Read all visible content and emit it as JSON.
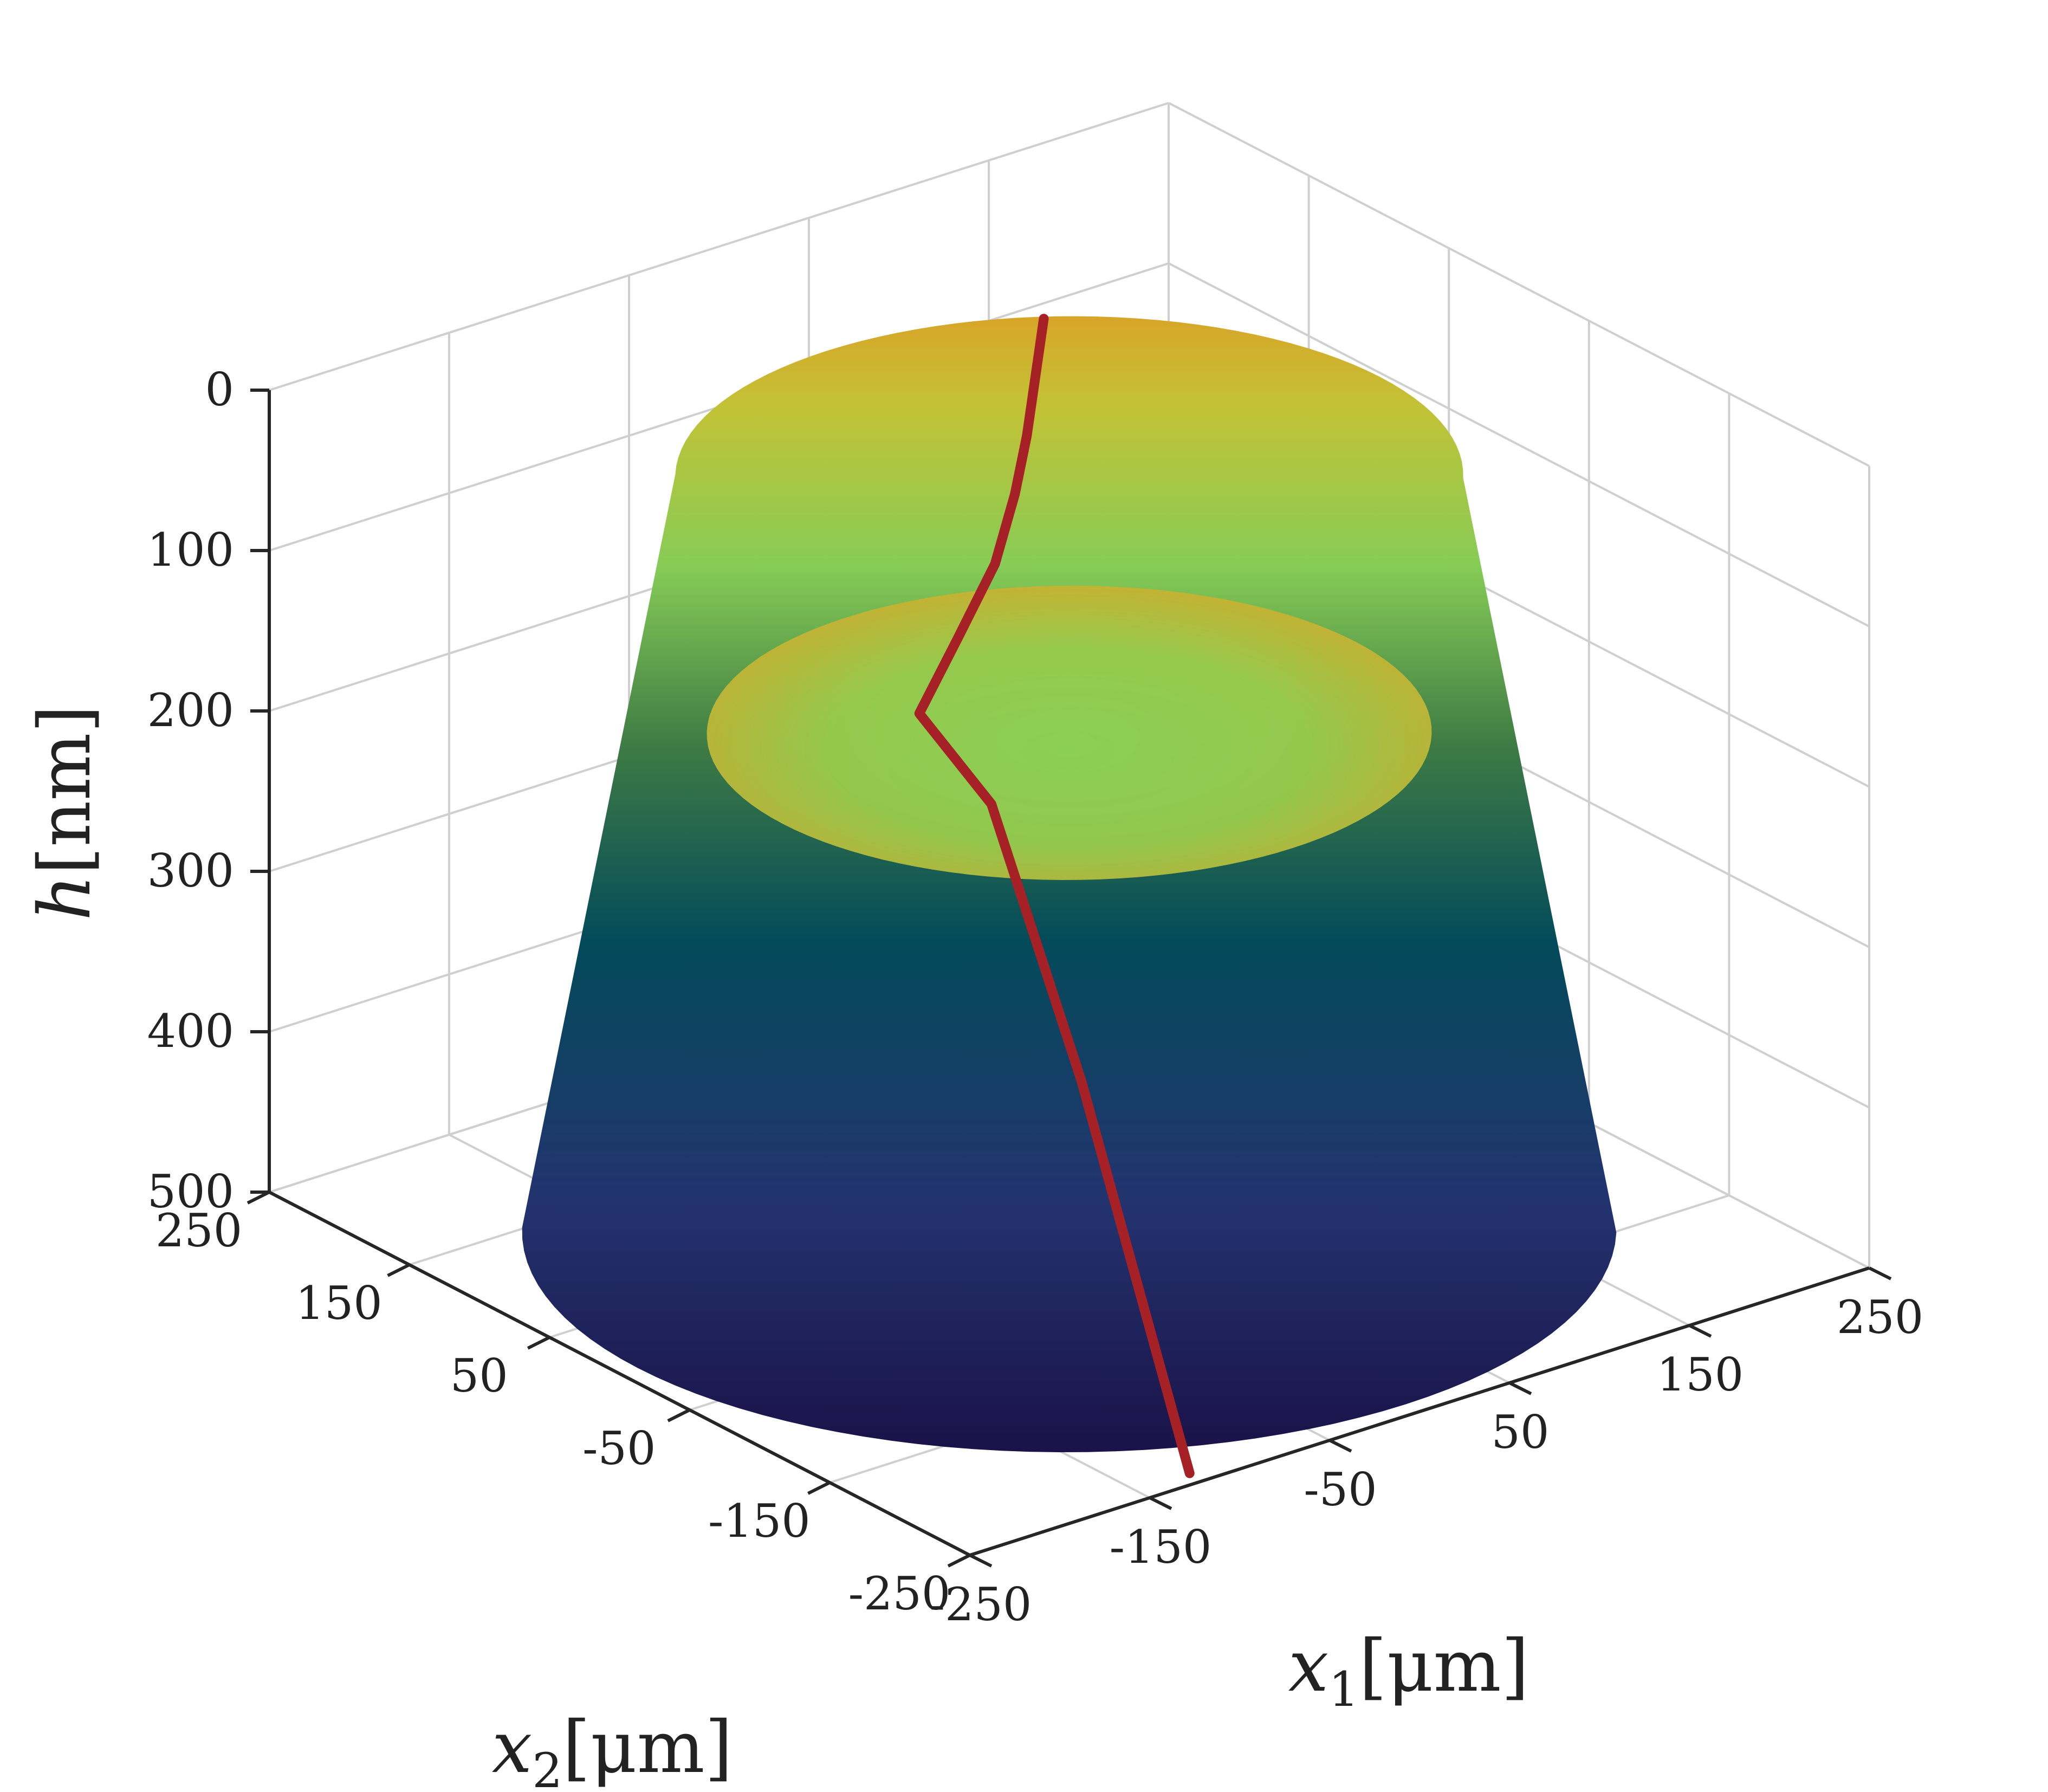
{
  "chart_data": {
    "type": "surface",
    "x1": {
      "label": "x",
      "subscript": "1",
      "unit": "[μm]",
      "lim": [
        -250,
        250
      ],
      "ticks": [
        -250,
        -150,
        -50,
        50,
        150,
        250
      ],
      "tick_labels": [
        "-250",
        "-150",
        "-50",
        "50",
        "150",
        "250"
      ]
    },
    "x2": {
      "label": "x",
      "subscript": "2",
      "unit": "[μm]",
      "lim": [
        -250,
        250
      ],
      "ticks": [
        -250,
        -150,
        -50,
        50,
        150,
        250
      ],
      "tick_labels": [
        "-250",
        "-150",
        "-50",
        "50",
        "150",
        "250"
      ]
    },
    "h": {
      "label": "h",
      "unit": "[nm]",
      "lim": [
        0,
        500
      ],
      "reversed": true,
      "ticks": [
        0,
        100,
        200,
        300,
        400,
        500
      ],
      "tick_labels": [
        "0",
        "100",
        "200",
        "300",
        "400",
        "500"
      ]
    },
    "grid": true,
    "colormap": "viridis-like (dark blue at h=500 to yellow at h≈30)",
    "surface_summary": {
      "footprint_radius_um": 240,
      "h_at_footprint_edge": 500,
      "central_plateau_h": 170,
      "rim_ridge_h": 30,
      "description_values": {
        "rim_min_h": 30,
        "plateau_h": 170
      }
    },
    "profile_line": {
      "color": "#a52125",
      "x1_x2_path": [
        [
          -120,
          -240
        ],
        [
          -110,
          -150
        ],
        [
          -90,
          -60
        ],
        [
          -60,
          30
        ],
        [
          0,
          80
        ],
        [
          60,
          130
        ],
        [
          110,
          180
        ],
        [
          140,
          210
        ],
        [
          165,
          230
        ]
      ],
      "h_values": [
        500,
        300,
        175,
        170,
        168,
        165,
        162,
        150,
        95
      ]
    }
  }
}
